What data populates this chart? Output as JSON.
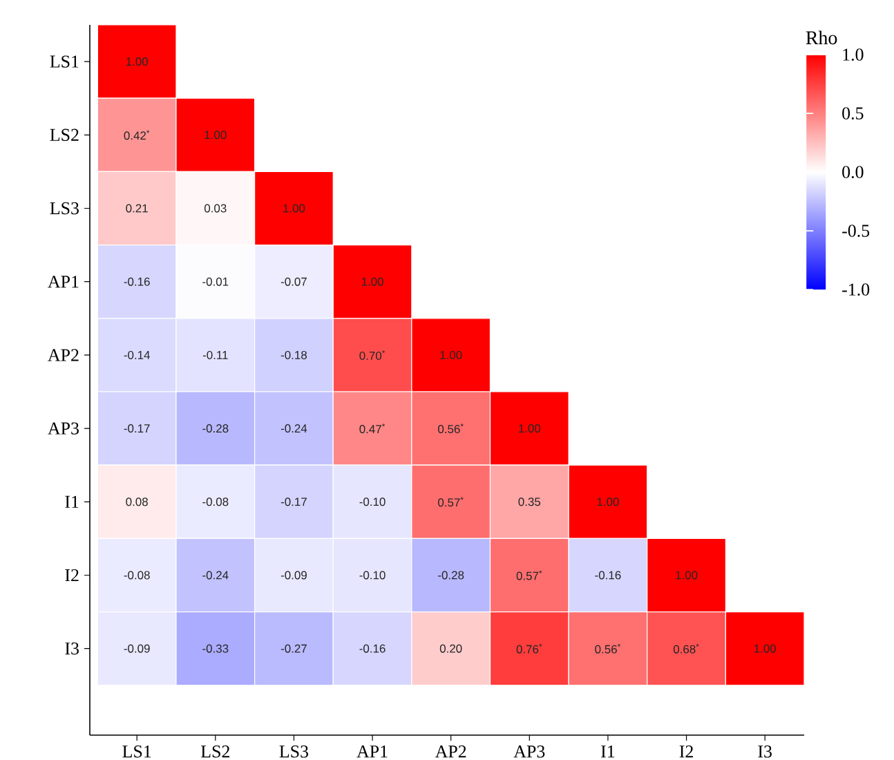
{
  "chart_data": {
    "type": "heatmap",
    "categories": [
      "LS1",
      "LS2",
      "LS3",
      "AP1",
      "AP2",
      "AP3",
      "I1",
      "I2",
      "I3"
    ],
    "y_categories": [
      "LS1",
      "LS2",
      "LS3",
      "AP1",
      "AP2",
      "AP3",
      "I1",
      "I2",
      "I3"
    ],
    "cells": [
      [
        1.0,
        null,
        null,
        null,
        null,
        null,
        null,
        null,
        null
      ],
      [
        0.42,
        1.0,
        null,
        null,
        null,
        null,
        null,
        null,
        null
      ],
      [
        0.21,
        0.03,
        1.0,
        null,
        null,
        null,
        null,
        null,
        null
      ],
      [
        -0.16,
        -0.01,
        -0.07,
        1.0,
        null,
        null,
        null,
        null,
        null
      ],
      [
        -0.14,
        -0.11,
        -0.18,
        0.7,
        1.0,
        null,
        null,
        null,
        null
      ],
      [
        -0.17,
        -0.28,
        -0.24,
        0.47,
        0.56,
        1.0,
        null,
        null,
        null
      ],
      [
        0.08,
        -0.08,
        -0.17,
        -0.1,
        0.57,
        0.35,
        1.0,
        null,
        null
      ],
      [
        -0.08,
        -0.24,
        -0.09,
        -0.1,
        -0.28,
        0.57,
        -0.16,
        1.0,
        null
      ],
      [
        -0.09,
        -0.33,
        -0.27,
        -0.16,
        0.2,
        0.76,
        0.56,
        0.68,
        1.0
      ]
    ],
    "cell_labels": [
      [
        "1.00",
        null,
        null,
        null,
        null,
        null,
        null,
        null,
        null
      ],
      [
        "0.42$^{*}$",
        "1.00",
        null,
        null,
        null,
        null,
        null,
        null,
        null
      ],
      [
        "0.21",
        "0.03",
        "1.00",
        null,
        null,
        null,
        null,
        null,
        null
      ],
      [
        "-0.16",
        "-0.01",
        "-0.07",
        "1.00",
        null,
        null,
        null,
        null,
        null
      ],
      [
        "-0.14",
        "-0.11",
        "-0.18",
        "0.70$^{*}$",
        "1.00",
        null,
        null,
        null,
        null
      ],
      [
        "-0.17",
        "-0.28",
        "-0.24",
        "0.47$^{*}$",
        "0.56$^{*}$",
        "1.00",
        null,
        null,
        null
      ],
      [
        "0.08",
        "-0.08",
        "-0.17",
        "-0.10",
        "0.57$^{*}$",
        "0.35",
        "1.00",
        null,
        null
      ],
      [
        "-0.08",
        "-0.24",
        "-0.09",
        "-0.10",
        "-0.28",
        "0.57$^{*}$",
        "-0.16",
        "1.00",
        null
      ],
      [
        "-0.09",
        "-0.33",
        "-0.27",
        "-0.16",
        "0.20",
        "0.76$^{*}$",
        "0.56$^{*}$",
        "0.68$^{*}$",
        "1.00"
      ]
    ],
    "clabel": "Rho",
    "clim": [
      -1,
      1
    ],
    "cticks": [
      {
        "value": -1,
        "label": "-1.0"
      },
      {
        "value": -0.5,
        "label": "-0.5"
      },
      {
        "value": 0,
        "label": "0.0"
      },
      {
        "value": 0.5,
        "label": "0.5"
      },
      {
        "value": 1,
        "label": "1.0"
      }
    ]
  }
}
